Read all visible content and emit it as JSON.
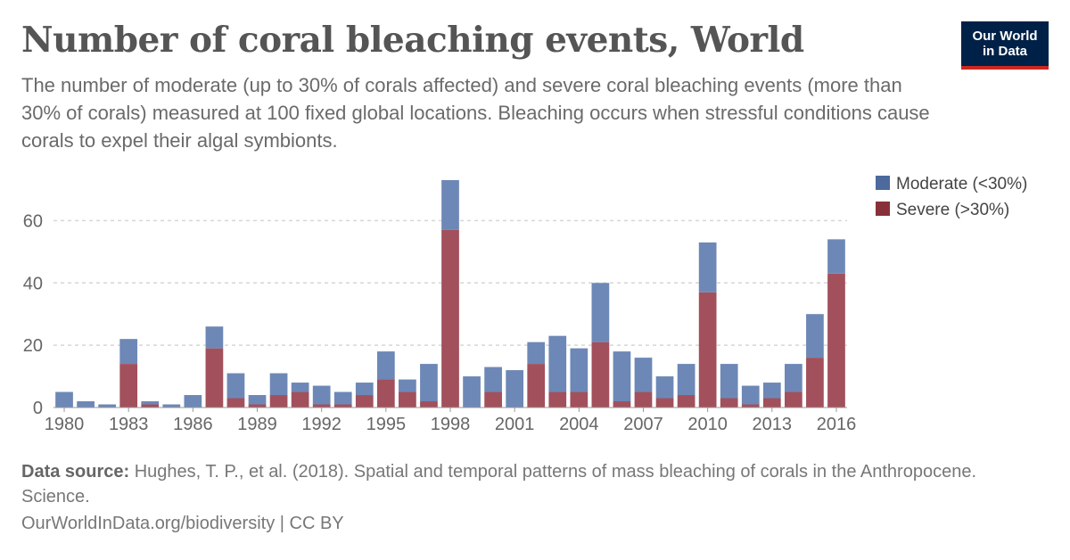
{
  "header": {
    "title": "Number of coral bleaching events, World",
    "subtitle": "The number of moderate (up to 30% of corals affected) and severe coral bleaching events (more than 30% of corals) measured at 100 fixed global locations. Bleaching occurs when stressful conditions cause corals to expel their algal symbionts."
  },
  "logo": {
    "line1": "Our World",
    "line2": "in Data"
  },
  "footer": {
    "source_label": "Data source:",
    "source_text": "Hughes, T. P., et al. (2018). Spatial and temporal patterns of mass bleaching of corals in the Anthropocene. Science.",
    "url": "OurWorldInData.org/biodiversity | CC BY"
  },
  "colors": {
    "moderate": "#6d88b6",
    "severe": "#a2505c",
    "moderate_legend": "#4c6a9c",
    "severe_legend": "#883039",
    "grid": "#d6d6d6"
  },
  "chart_data": {
    "type": "bar",
    "stacked": true,
    "categories": [
      1980,
      1981,
      1982,
      1983,
      1984,
      1985,
      1986,
      1987,
      1988,
      1989,
      1990,
      1991,
      1992,
      1993,
      1994,
      1995,
      1996,
      1997,
      1998,
      1999,
      2000,
      2001,
      2002,
      2003,
      2004,
      2005,
      2006,
      2007,
      2008,
      2009,
      2010,
      2011,
      2012,
      2013,
      2014,
      2015,
      2016
    ],
    "series": [
      {
        "name": "Severe (>30%)",
        "values": [
          0,
          0,
          0,
          14,
          1,
          0,
          0,
          19,
          3,
          1,
          4,
          5,
          1,
          1,
          4,
          9,
          5,
          2,
          57,
          0,
          5,
          0,
          14,
          5,
          5,
          21,
          2,
          5,
          3,
          4,
          37,
          3,
          1,
          3,
          5,
          16,
          43
        ]
      },
      {
        "name": "Moderate (<30%)",
        "values": [
          5,
          2,
          1,
          8,
          1,
          1,
          4,
          7,
          8,
          3,
          7,
          3,
          6,
          4,
          4,
          9,
          4,
          12,
          16,
          10,
          8,
          12,
          7,
          18,
          14,
          19,
          16,
          11,
          7,
          10,
          16,
          11,
          6,
          5,
          9,
          14,
          11
        ]
      }
    ],
    "xticks": [
      "1980",
      "1983",
      "1986",
      "1989",
      "1992",
      "1995",
      "1998",
      "2001",
      "2004",
      "2007",
      "2010",
      "2013",
      "2016"
    ],
    "yticks": [
      0,
      20,
      40,
      60
    ],
    "ylim": [
      0,
      73
    ],
    "grid": true,
    "legend_position": "top-right",
    "xlabel": "",
    "ylabel": ""
  }
}
